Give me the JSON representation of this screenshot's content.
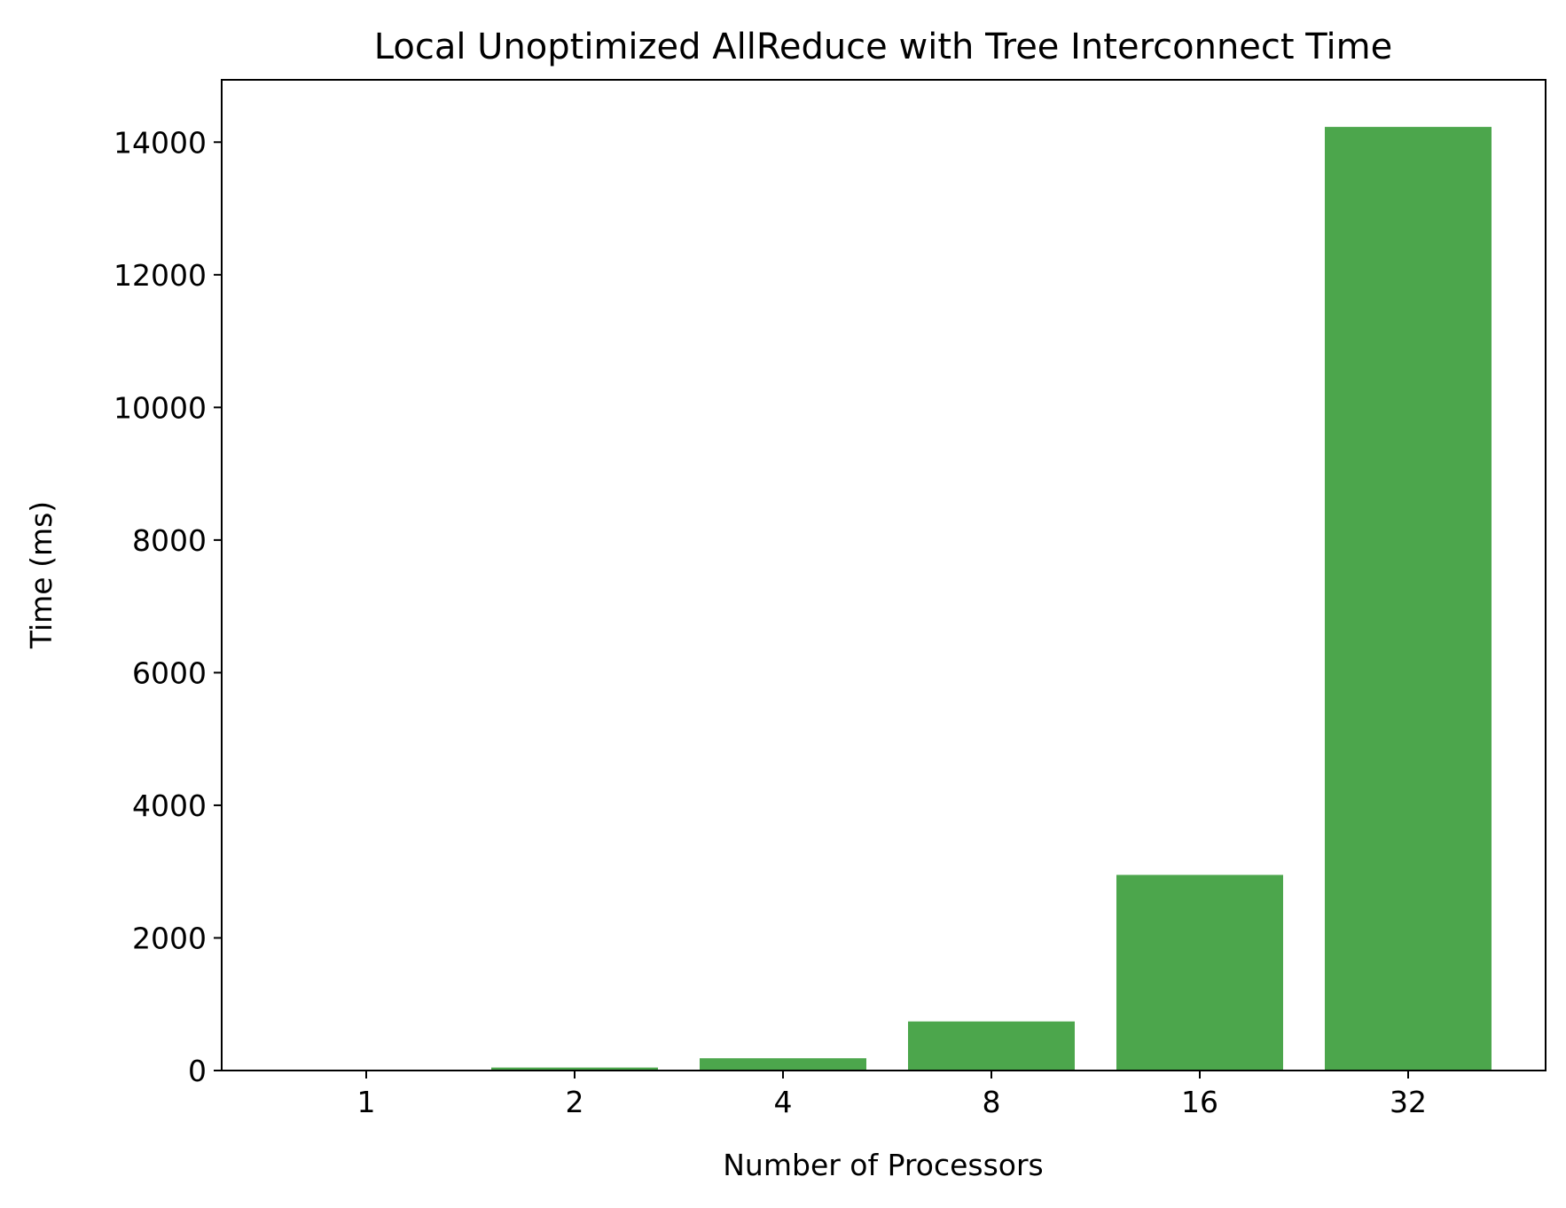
{
  "chart_data": {
    "type": "bar",
    "title": "Local Unoptimized AllReduce with Tree Interconnect Time",
    "xlabel": "Number of Processors",
    "ylabel": "Time (ms)",
    "categories": [
      "1",
      "2",
      "4",
      "8",
      "16",
      "32"
    ],
    "values": [
      3,
      45,
      185,
      740,
      2950,
      14230
    ],
    "ylim": [
      0,
      14940
    ],
    "yticks": [
      0,
      2000,
      4000,
      6000,
      8000,
      10000,
      12000,
      14000
    ],
    "ytick_labels": [
      "0",
      "2000",
      "4000",
      "6000",
      "8000",
      "10000",
      "12000",
      "14000"
    ],
    "bar_color": "#4ca64c",
    "grid": false,
    "legend": "none"
  }
}
